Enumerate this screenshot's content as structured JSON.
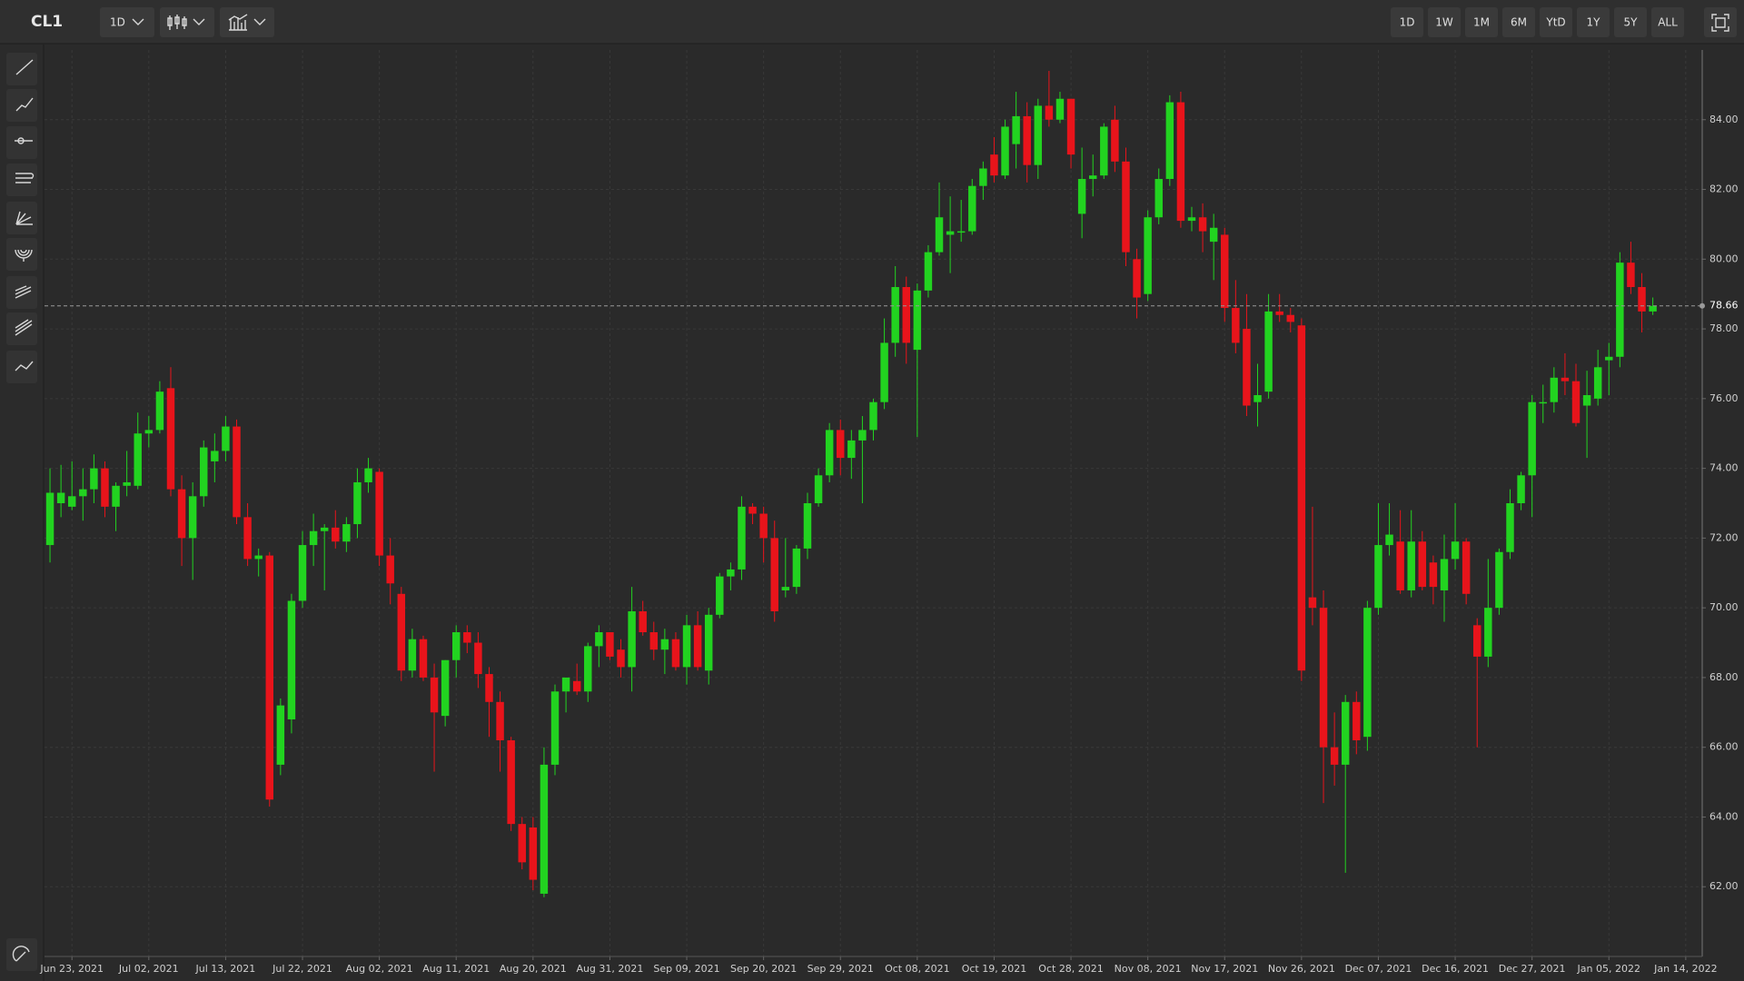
{
  "header": {
    "symbol": "CL1",
    "interval": "1D",
    "ranges": [
      "1D",
      "1W",
      "1M",
      "6M",
      "YtD",
      "1Y",
      "5Y",
      "ALL"
    ]
  },
  "chart_data": {
    "type": "candlestick",
    "up_color": "#22d320",
    "down_color": "#e8141b",
    "grid": true,
    "last_price": 78.66,
    "xlim": [
      -0.5,
      150.5
    ],
    "xticks": [
      {
        "value": 2,
        "label": "Jun 23, 2021"
      },
      {
        "value": 9,
        "label": "Jul 02, 2021"
      },
      {
        "value": 16,
        "label": "Jul 13, 2021"
      },
      {
        "value": 23,
        "label": "Jul 22, 2021"
      },
      {
        "value": 30,
        "label": "Aug 02, 2021"
      },
      {
        "value": 37,
        "label": "Aug 11, 2021"
      },
      {
        "value": 44,
        "label": "Aug 20, 2021"
      },
      {
        "value": 51,
        "label": "Aug 31, 2021"
      },
      {
        "value": 58,
        "label": "Sep 09, 2021"
      },
      {
        "value": 65,
        "label": "Sep 20, 2021"
      },
      {
        "value": 72,
        "label": "Sep 29, 2021"
      },
      {
        "value": 79,
        "label": "Oct 08, 2021"
      },
      {
        "value": 86,
        "label": "Oct 19, 2021"
      },
      {
        "value": 93,
        "label": "Oct 28, 2021"
      },
      {
        "value": 100,
        "label": "Nov 08, 2021"
      },
      {
        "value": 107,
        "label": "Nov 17, 2021"
      },
      {
        "value": 114,
        "label": "Nov 26, 2021"
      },
      {
        "value": 121,
        "label": "Dec 07, 2021"
      },
      {
        "value": 128,
        "label": "Dec 16, 2021"
      },
      {
        "value": 135,
        "label": "Dec 27, 2021"
      },
      {
        "value": 142,
        "label": "Jan 05, 2022"
      },
      {
        "value": 149,
        "label": "Jan 14, 2022"
      }
    ],
    "ylim": [
      60,
      86
    ],
    "yticks": [
      {
        "value": 62,
        "label": "62.00"
      },
      {
        "value": 64,
        "label": "64.00"
      },
      {
        "value": 66,
        "label": "66.00"
      },
      {
        "value": 68,
        "label": "68.00"
      },
      {
        "value": 70,
        "label": "70.00"
      },
      {
        "value": 72,
        "label": "72.00"
      },
      {
        "value": 74,
        "label": "74.00"
      },
      {
        "value": 76,
        "label": "76.00"
      },
      {
        "value": 78,
        "label": "78.00"
      },
      {
        "value": 80,
        "label": "80.00"
      },
      {
        "value": 82,
        "label": "82.00"
      },
      {
        "value": 84,
        "label": "84.00"
      }
    ],
    "open": [
      71.8,
      73.0,
      72.9,
      73.2,
      73.4,
      74.0,
      72.9,
      73.5,
      73.5,
      75.0,
      75.1,
      76.3,
      73.4,
      72.0,
      73.2,
      74.2,
      74.5,
      75.2,
      72.6,
      71.4,
      71.5,
      65.5,
      66.8,
      70.2,
      71.8,
      72.2,
      72.3,
      71.9,
      72.4,
      73.6,
      73.9,
      71.5,
      70.4,
      68.2,
      69.1,
      68.0,
      66.9,
      68.5,
      69.3,
      69.0,
      68.1,
      67.3,
      66.2,
      63.8,
      63.7,
      61.8,
      65.5,
      67.6,
      67.9,
      67.6,
      68.9,
      69.3,
      68.8,
      68.3,
      69.9,
      69.3,
      68.8,
      69.1,
      68.3,
      69.5,
      68.2,
      69.8,
      70.9,
      71.1,
      72.9,
      72.7,
      72.0,
      70.5,
      70.6,
      71.7,
      73.0,
      73.8,
      75.1,
      74.3,
      74.8,
      75.1,
      75.9,
      77.6,
      79.2,
      77.4,
      79.1,
      80.2,
      80.7,
      80.8,
      80.8,
      82.1,
      83.0,
      82.4,
      83.3,
      84.1,
      82.7,
      84.4,
      84.0,
      84.6,
      81.3,
      82.3,
      82.4,
      84.0,
      82.8,
      80.0,
      79.0,
      81.2,
      82.3,
      84.5,
      81.1,
      81.2,
      80.5,
      80.7,
      78.6,
      78.0,
      75.9,
      76.2,
      78.5,
      78.4,
      78.1,
      70.3,
      70.0,
      66.0,
      65.5,
      67.3,
      66.3,
      70.0,
      71.8,
      71.9,
      70.5,
      71.9,
      71.3,
      70.5,
      71.4,
      71.9,
      69.5,
      68.6,
      70.0,
      71.6,
      73.0,
      73.8,
      75.9,
      75.9,
      76.6,
      76.5,
      75.8,
      76.0,
      77.1,
      77.2,
      79.9,
      79.2,
      78.5
    ],
    "high": [
      74.0,
      74.1,
      74.2,
      74.0,
      74.4,
      74.2,
      73.6,
      74.5,
      75.6,
      75.5,
      76.5,
      76.9,
      73.8,
      73.6,
      74.8,
      75.0,
      75.5,
      75.4,
      73.0,
      71.7,
      71.6,
      67.4,
      70.4,
      72.2,
      72.7,
      72.4,
      72.8,
      72.6,
      74.0,
      74.3,
      74.0,
      72.0,
      70.6,
      69.4,
      69.2,
      68.4,
      68.5,
      69.5,
      69.5,
      69.3,
      68.3,
      67.6,
      66.3,
      64.0,
      64.0,
      66.0,
      67.8,
      68.0,
      68.4,
      69.0,
      69.5,
      69.3,
      69.1,
      70.6,
      70.2,
      69.6,
      69.4,
      69.3,
      69.8,
      69.9,
      70.0,
      71.0,
      71.3,
      73.2,
      73.0,
      72.9,
      72.5,
      72.0,
      71.8,
      73.3,
      74.0,
      75.3,
      75.4,
      75.1,
      75.5,
      76.0,
      78.3,
      79.8,
      79.5,
      79.3,
      80.4,
      82.2,
      81.8,
      81.7,
      82.3,
      82.8,
      83.5,
      84.0,
      84.8,
      84.5,
      84.6,
      85.4,
      84.8,
      84.6,
      83.2,
      83.0,
      83.9,
      84.4,
      83.2,
      80.3,
      81.4,
      82.6,
      84.7,
      84.8,
      81.5,
      81.6,
      81.3,
      80.9,
      79.4,
      79.0,
      77.0,
      79.0,
      79.0,
      78.6,
      78.3,
      72.9,
      70.5,
      67.0,
      67.5,
      67.6,
      70.2,
      73.0,
      73.0,
      72.8,
      72.8,
      72.2,
      71.5,
      72.1,
      73.0,
      72.0,
      69.7,
      71.4,
      71.7,
      73.4,
      73.9,
      76.1,
      76.4,
      76.9,
      77.3,
      77.0,
      76.8,
      77.4,
      77.6,
      80.2,
      80.5,
      79.6,
      78.9
    ],
    "low": [
      71.3,
      72.6,
      72.8,
      72.5,
      73.0,
      72.6,
      72.2,
      73.2,
      73.4,
      74.6,
      75.0,
      73.2,
      71.2,
      70.8,
      72.9,
      73.6,
      74.2,
      72.4,
      71.2,
      70.9,
      64.3,
      65.2,
      66.4,
      70.0,
      71.2,
      70.5,
      71.7,
      71.6,
      72.0,
      73.3,
      71.2,
      70.1,
      67.9,
      68.0,
      67.9,
      65.3,
      66.6,
      68.0,
      68.7,
      67.7,
      66.3,
      65.3,
      63.6,
      62.5,
      61.9,
      61.7,
      65.2,
      67.0,
      67.5,
      67.3,
      68.3,
      68.5,
      68.0,
      67.6,
      69.2,
      68.5,
      68.1,
      68.2,
      67.8,
      68.2,
      67.8,
      69.7,
      70.5,
      70.8,
      72.4,
      71.3,
      69.6,
      70.3,
      70.4,
      71.4,
      72.9,
      73.6,
      73.8,
      73.7,
      73.0,
      74.8,
      75.7,
      77.2,
      77.0,
      74.9,
      78.9,
      80.1,
      79.6,
      80.5,
      80.7,
      81.7,
      82.2,
      82.3,
      82.6,
      82.2,
      82.3,
      83.8,
      83.9,
      82.6,
      80.6,
      81.8,
      82.3,
      82.5,
      79.8,
      78.3,
      78.8,
      81.0,
      82.1,
      80.9,
      80.8,
      80.2,
      79.4,
      78.2,
      77.3,
      75.5,
      75.2,
      76.0,
      78.2,
      77.9,
      67.9,
      69.5,
      64.4,
      64.9,
      62.4,
      65.8,
      65.9,
      69.8,
      71.5,
      70.4,
      70.3,
      70.5,
      70.1,
      69.6,
      71.1,
      70.1,
      66.0,
      68.3,
      69.8,
      71.4,
      72.8,
      72.6,
      75.3,
      75.6,
      76.1,
      75.2,
      74.3,
      75.8,
      76.1,
      76.9,
      79.0,
      77.9,
      78.4
    ],
    "close": [
      73.3,
      73.3,
      73.2,
      73.4,
      74.0,
      72.9,
      73.5,
      73.6,
      75.0,
      75.1,
      76.2,
      73.4,
      72.0,
      73.2,
      74.6,
      74.5,
      75.2,
      72.6,
      71.4,
      71.5,
      64.5,
      67.2,
      70.2,
      71.8,
      72.2,
      72.3,
      71.9,
      72.4,
      73.6,
      74.0,
      71.5,
      70.7,
      68.2,
      69.1,
      68.0,
      67.0,
      68.5,
      69.3,
      69.0,
      68.1,
      67.3,
      66.2,
      63.8,
      62.7,
      62.2,
      65.5,
      67.6,
      68.0,
      67.6,
      68.9,
      69.3,
      68.6,
      68.3,
      69.9,
      69.3,
      68.8,
      69.1,
      68.3,
      69.5,
      68.3,
      69.8,
      70.9,
      71.1,
      72.9,
      72.7,
      72.0,
      69.9,
      70.6,
      71.7,
      73.0,
      73.8,
      75.1,
      74.3,
      74.8,
      75.1,
      75.9,
      77.6,
      79.2,
      77.6,
      79.1,
      80.2,
      81.2,
      80.8,
      80.8,
      82.1,
      82.6,
      82.4,
      83.8,
      84.1,
      82.7,
      84.4,
      84.0,
      84.6,
      83.0,
      82.3,
      82.4,
      83.8,
      82.8,
      80.2,
      78.9,
      81.2,
      82.3,
      84.5,
      81.1,
      81.2,
      80.8,
      80.9,
      78.6,
      77.6,
      75.8,
      76.1,
      78.5,
      78.4,
      78.2,
      68.2,
      70.0,
      66.0,
      65.5,
      67.3,
      66.2,
      70.0,
      71.8,
      72.1,
      70.5,
      71.9,
      70.6,
      70.6,
      71.4,
      71.9,
      70.4,
      68.6,
      70.0,
      71.6,
      73.0,
      73.8,
      75.9,
      75.9,
      76.6,
      76.5,
      75.3,
      76.1,
      76.9,
      77.2,
      79.9,
      79.2,
      78.5,
      78.66
    ]
  }
}
